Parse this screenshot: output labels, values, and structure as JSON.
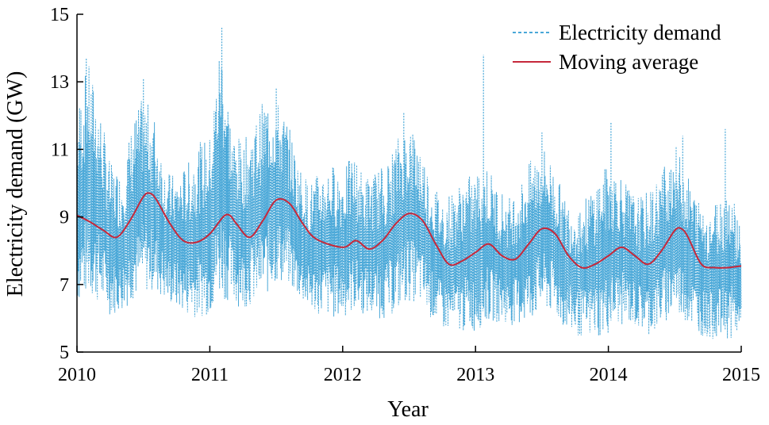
{
  "chart_data": {
    "type": "line",
    "title": "",
    "xlabel": "Year",
    "ylabel": "Electricity demand (GW)",
    "xlim": [
      2010,
      2015
    ],
    "ylim": [
      5,
      15
    ],
    "x_ticks": [
      "2010",
      "2011",
      "2012",
      "2013",
      "2014",
      "2015"
    ],
    "y_ticks": [
      "5",
      "7",
      "9",
      "11",
      "13",
      "15"
    ],
    "grid": false,
    "legend_position": "top-right",
    "series": [
      {
        "name": "Electricity demand",
        "style": "dashed",
        "color": "#4aa8d8",
        "sampling": "daily min/max envelope (approximate)",
        "x": [
          2010.0,
          2010.0833,
          2010.1667,
          2010.25,
          2010.3333,
          2010.4167,
          2010.5,
          2010.5833,
          2010.6667,
          2010.75,
          2010.8333,
          2010.9167,
          2011.0,
          2011.0833,
          2011.1667,
          2011.25,
          2011.3333,
          2011.4167,
          2011.5,
          2011.5833,
          2011.6667,
          2011.75,
          2011.8333,
          2011.9167,
          2012.0,
          2012.0833,
          2012.1667,
          2012.25,
          2012.3333,
          2012.4167,
          2012.5,
          2012.5833,
          2012.6667,
          2012.75,
          2012.8333,
          2012.9167,
          2013.0,
          2013.0833,
          2013.1667,
          2013.25,
          2013.3333,
          2013.4167,
          2013.5,
          2013.5833,
          2013.6667,
          2013.75,
          2013.8333,
          2013.9167,
          2014.0,
          2014.0833,
          2014.1667,
          2014.25,
          2014.3333,
          2014.4167,
          2014.5,
          2014.5833,
          2014.6667,
          2014.75,
          2014.8333,
          2014.9167,
          2015.0
        ],
        "min": [
          6.3,
          6.5,
          6.3,
          6.0,
          6.1,
          6.4,
          6.6,
          6.7,
          6.4,
          6.2,
          6.0,
          5.9,
          6.0,
          6.5,
          6.3,
          6.2,
          6.3,
          6.5,
          6.9,
          6.9,
          6.5,
          6.1,
          6.0,
          5.9,
          5.9,
          6.1,
          6.0,
          5.9,
          5.9,
          6.1,
          6.4,
          6.3,
          5.9,
          5.6,
          5.4,
          5.5,
          5.5,
          5.8,
          5.8,
          5.7,
          5.7,
          5.8,
          6.1,
          6.0,
          5.6,
          5.4,
          5.3,
          5.3,
          5.4,
          5.7,
          5.7,
          5.5,
          5.4,
          5.7,
          6.0,
          5.8,
          5.5,
          5.3,
          5.3,
          5.3,
          5.3
        ],
        "max": [
          12.2,
          13.6,
          12.4,
          10.6,
          10.3,
          11.8,
          12.6,
          12.0,
          10.4,
          10.2,
          10.6,
          11.2,
          11.4,
          14.5,
          11.6,
          11.2,
          11.8,
          12.6,
          12.5,
          11.9,
          10.6,
          10.0,
          10.4,
          10.6,
          10.4,
          10.9,
          10.2,
          10.4,
          10.6,
          11.4,
          11.9,
          11.2,
          10.1,
          9.6,
          9.8,
          10.2,
          10.3,
          10.6,
          9.9,
          9.6,
          10.0,
          10.7,
          11.2,
          10.6,
          9.6,
          9.4,
          9.6,
          10.2,
          10.6,
          10.4,
          9.8,
          9.6,
          9.9,
          10.6,
          11.2,
          10.4,
          9.6,
          9.3,
          9.6,
          10.0,
          8.8
        ],
        "spikes": [
          {
            "x": 2010.07,
            "y": 13.7
          },
          {
            "x": 2010.5,
            "y": 13.1
          },
          {
            "x": 2011.09,
            "y": 14.6
          },
          {
            "x": 2011.5,
            "y": 12.8
          },
          {
            "x": 2012.46,
            "y": 12.1
          },
          {
            "x": 2013.06,
            "y": 13.8
          },
          {
            "x": 2013.5,
            "y": 11.5
          },
          {
            "x": 2014.02,
            "y": 11.8
          },
          {
            "x": 2014.56,
            "y": 11.4
          },
          {
            "x": 2014.88,
            "y": 11.6
          }
        ]
      },
      {
        "name": "Moving average",
        "style": "solid",
        "color": "#c6283a",
        "x": [
          2010.0,
          2010.1,
          2010.2,
          2010.3,
          2010.4,
          2010.5,
          2010.55,
          2010.6,
          2010.7,
          2010.8,
          2010.9,
          2011.0,
          2011.1,
          2011.15,
          2011.2,
          2011.3,
          2011.4,
          2011.5,
          2011.6,
          2011.7,
          2011.8,
          2012.0,
          2012.1,
          2012.2,
          2012.3,
          2012.4,
          2012.5,
          2012.6,
          2012.7,
          2012.8,
          2012.9,
          2013.0,
          2013.1,
          2013.2,
          2013.3,
          2013.4,
          2013.5,
          2013.6,
          2013.7,
          2013.8,
          2013.9,
          2014.0,
          2014.1,
          2014.2,
          2014.3,
          2014.4,
          2014.5,
          2014.55,
          2014.6,
          2014.7,
          2014.8,
          2014.9,
          2015.0
        ],
        "y": [
          9.05,
          8.85,
          8.6,
          8.4,
          8.9,
          9.6,
          9.7,
          9.5,
          8.8,
          8.3,
          8.25,
          8.5,
          9.0,
          9.05,
          8.8,
          8.4,
          8.9,
          9.5,
          9.4,
          8.8,
          8.35,
          8.1,
          8.3,
          8.05,
          8.3,
          8.8,
          9.1,
          8.9,
          8.2,
          7.6,
          7.7,
          7.95,
          8.2,
          7.85,
          7.75,
          8.2,
          8.65,
          8.5,
          7.85,
          7.5,
          7.6,
          7.85,
          8.1,
          7.85,
          7.6,
          8.0,
          8.6,
          8.65,
          8.4,
          7.6,
          7.5,
          7.5,
          7.55
        ]
      }
    ]
  }
}
